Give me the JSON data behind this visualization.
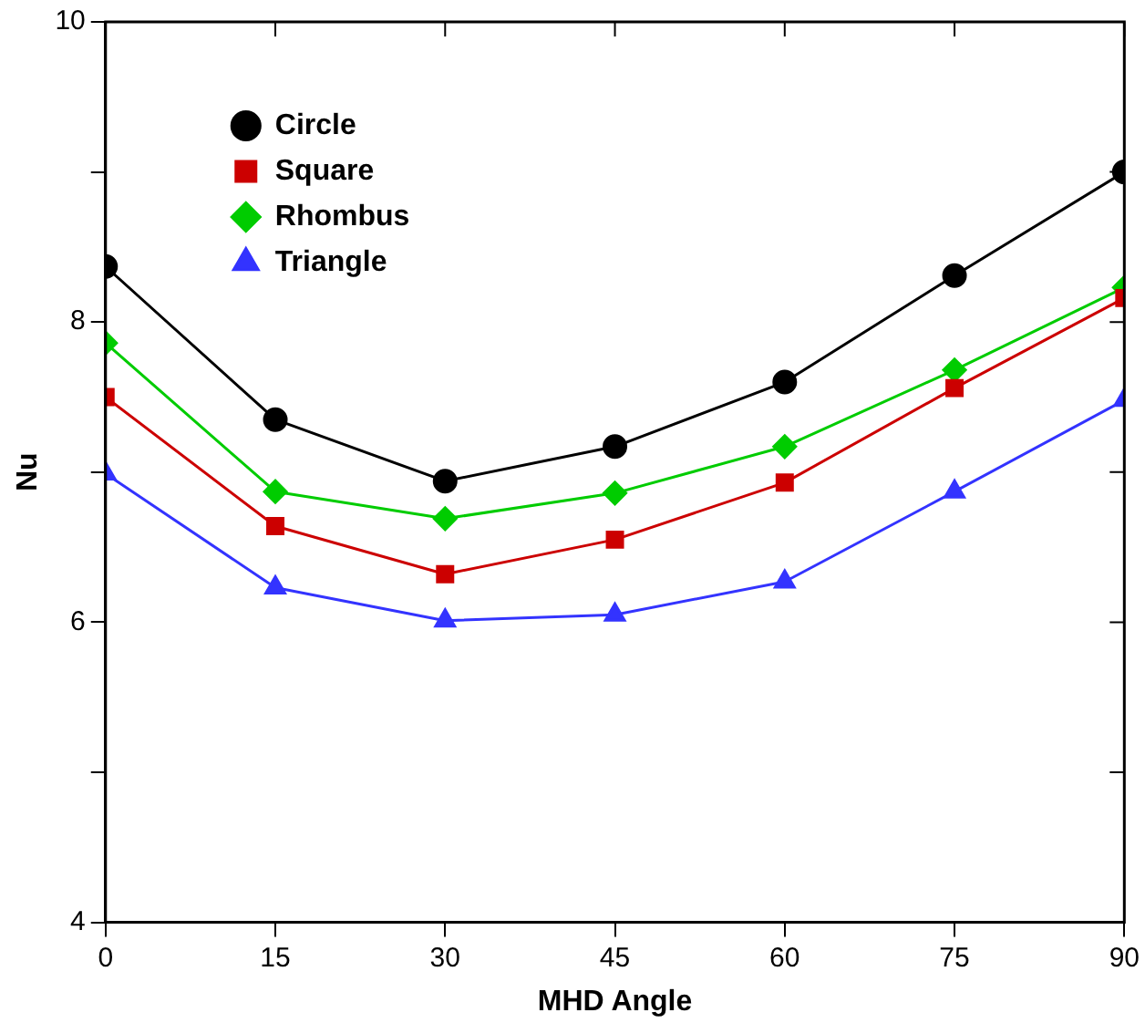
{
  "chart_data": {
    "type": "line",
    "xlabel": "MHD Angle",
    "ylabel": "Nu",
    "x": [
      0,
      15,
      30,
      45,
      60,
      75,
      90
    ],
    "series": [
      {
        "name": "Circle",
        "color": "#000000",
        "marker": "circle",
        "values": [
          8.37,
          7.35,
          6.94,
          7.17,
          7.6,
          8.31,
          9.0
        ]
      },
      {
        "name": "Square",
        "color": "#cc0000",
        "marker": "square",
        "values": [
          7.5,
          6.64,
          6.32,
          6.55,
          6.93,
          7.56,
          8.16
        ]
      },
      {
        "name": "Rhombus",
        "color": "#00cc00",
        "marker": "diamond",
        "values": [
          7.86,
          6.87,
          6.69,
          6.86,
          7.17,
          7.68,
          8.23
        ]
      },
      {
        "name": "Triangle",
        "color": "#3333ff",
        "marker": "triangle",
        "values": [
          6.99,
          6.23,
          6.01,
          6.05,
          6.27,
          6.87,
          7.48
        ]
      }
    ],
    "xlim": [
      0,
      90
    ],
    "xticks": [
      0,
      15,
      30,
      45,
      60,
      75,
      90
    ],
    "ylim": [
      4,
      10
    ],
    "yticks": [
      4,
      {
        "value": 5,
        "label": null
      },
      6,
      {
        "value": 7,
        "label": null
      },
      8,
      {
        "value": 9,
        "label": null
      },
      10
    ],
    "grid": false,
    "legend": "top left",
    "line_style": "solid"
  }
}
